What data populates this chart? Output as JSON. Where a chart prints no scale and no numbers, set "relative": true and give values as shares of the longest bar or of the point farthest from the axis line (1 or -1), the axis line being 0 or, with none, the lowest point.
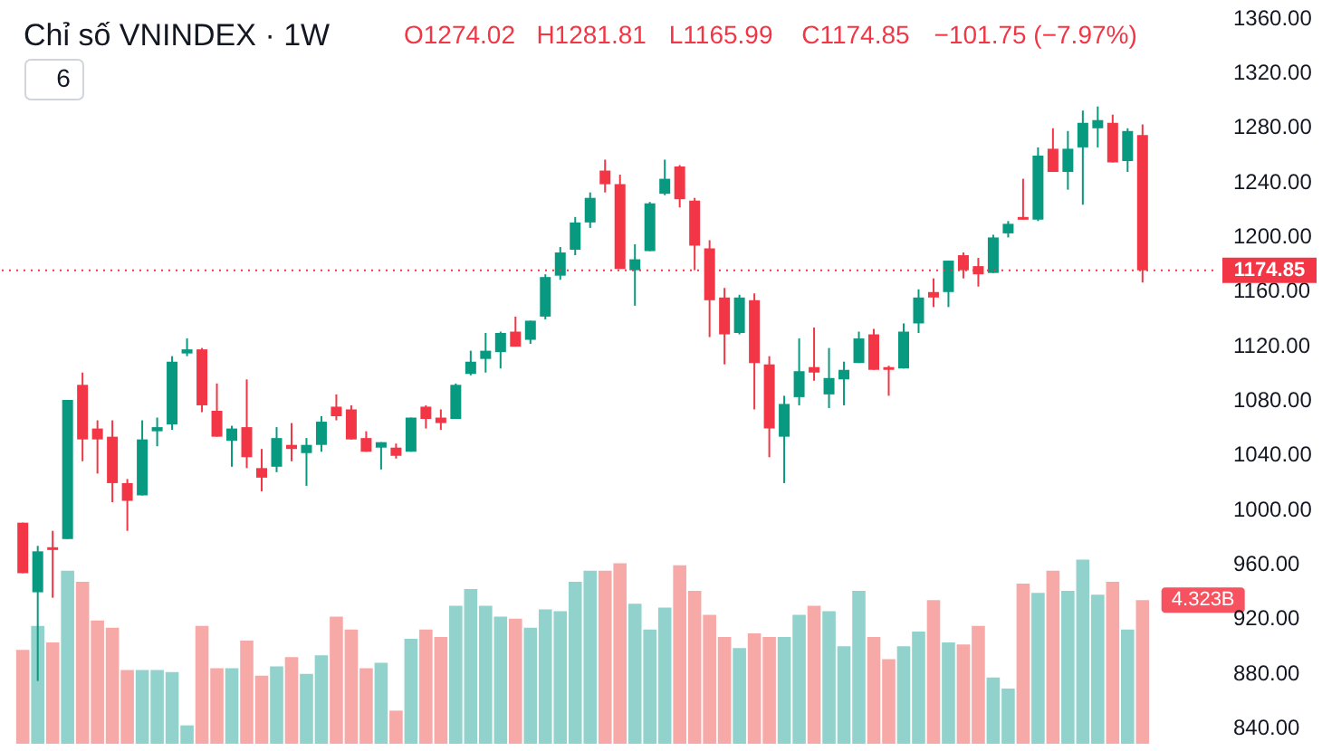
{
  "chart_data": [
    {
      "type": "candlestick",
      "title": "Chỉ số VNINDEX · 1W",
      "annotations": [
        "6",
        "O1274.02",
        "H1281.81",
        "L1165.99",
        "C1174.85",
        "−101.75 (−7.97%)"
      ],
      "categories": [
        null,
        null,
        null,
        null,
        null,
        null,
        null,
        null,
        null,
        null,
        null,
        null,
        null,
        null,
        null,
        null,
        null,
        null,
        null,
        null,
        null,
        null,
        null,
        null,
        null,
        null,
        null,
        null,
        null,
        null,
        null,
        null,
        null,
        null,
        null,
        null,
        null,
        null,
        null,
        null,
        null,
        null,
        null,
        null,
        null,
        null,
        null,
        null,
        null,
        null,
        null,
        null,
        null,
        null,
        null,
        null,
        null,
        null,
        null,
        null,
        null,
        null,
        null,
        null,
        null,
        null,
        null,
        null,
        null,
        null,
        null,
        null,
        null,
        null,
        null,
        null
      ],
      "ohlc": [
        [
          990,
          990,
          953,
          953
        ],
        [
          939,
          973,
          874,
          969
        ],
        [
          972,
          984,
          935,
          970
        ],
        [
          978,
          1080,
          978,
          1080
        ],
        [
          1091,
          1100,
          1035,
          1051
        ],
        [
          1059,
          1065,
          1026,
          1051
        ],
        [
          1053,
          1065,
          1005,
          1019
        ],
        [
          1019,
          1022,
          984,
          1006
        ],
        [
          1010,
          1065,
          1010,
          1051
        ],
        [
          1057,
          1067,
          1046,
          1060
        ],
        [
          1062,
          1112,
          1058,
          1108
        ],
        [
          1114,
          1125,
          1112,
          1117
        ],
        [
          1117,
          1118,
          1071,
          1076
        ],
        [
          1072,
          1092,
          1053,
          1053
        ],
        [
          1050,
          1061,
          1031,
          1059
        ],
        [
          1060,
          1095,
          1030,
          1038
        ],
        [
          1030,
          1044,
          1013,
          1023
        ],
        [
          1031,
          1060,
          1027,
          1052
        ],
        [
          1047,
          1063,
          1035,
          1044
        ],
        [
          1041,
          1052,
          1017,
          1047
        ],
        [
          1047,
          1068,
          1042,
          1064
        ],
        [
          1075,
          1084,
          1065,
          1068
        ],
        [
          1073,
          1076,
          1051,
          1051
        ],
        [
          1052,
          1057,
          1042,
          1042
        ],
        [
          1045,
          1049,
          1029,
          1049
        ],
        [
          1045,
          1048,
          1037,
          1039
        ],
        [
          1042,
          1067,
          1042,
          1067
        ],
        [
          1075,
          1076,
          1059,
          1066
        ],
        [
          1067,
          1073,
          1058,
          1063
        ],
        [
          1066,
          1092,
          1066,
          1091
        ],
        [
          1099,
          1116,
          1098,
          1108
        ],
        [
          1110,
          1129,
          1100,
          1116
        ],
        [
          1115,
          1130,
          1103,
          1129
        ],
        [
          1130,
          1141,
          1119,
          1119
        ],
        [
          1124,
          1138,
          1121,
          1138
        ],
        [
          1141,
          1172,
          1139,
          1170
        ],
        [
          1171,
          1192,
          1168,
          1188
        ],
        [
          1190,
          1214,
          1186,
          1210
        ],
        [
          1210,
          1232,
          1206,
          1228
        ],
        [
          1248,
          1256,
          1232,
          1238
        ],
        [
          1238,
          1245,
          1176,
          1176
        ],
        [
          1175,
          1194,
          1149,
          1183
        ],
        [
          1189,
          1225,
          1189,
          1224
        ],
        [
          1231,
          1256,
          1230,
          1242
        ],
        [
          1251,
          1252,
          1221,
          1227
        ],
        [
          1226,
          1228,
          1175,
          1193
        ],
        [
          1191,
          1197,
          1126,
          1153
        ],
        [
          1155,
          1162,
          1106,
          1128
        ],
        [
          1129,
          1157,
          1128,
          1155
        ],
        [
          1153,
          1158,
          1073,
          1107
        ],
        [
          1106,
          1112,
          1038,
          1059
        ],
        [
          1053,
          1083,
          1019,
          1077
        ],
        [
          1082,
          1125,
          1076,
          1101
        ],
        [
          1104,
          1133,
          1094,
          1100
        ],
        [
          1084,
          1118,
          1074,
          1096
        ],
        [
          1095,
          1108,
          1076,
          1102
        ],
        [
          1107,
          1130,
          1107,
          1125
        ],
        [
          1128,
          1132,
          1102,
          1102
        ],
        [
          1104,
          1105,
          1083,
          1102
        ],
        [
          1103,
          1136,
          1103,
          1130
        ],
        [
          1136,
          1161,
          1129,
          1155
        ],
        [
          1159,
          1169,
          1148,
          1155
        ],
        [
          1159,
          1182,
          1148,
          1182
        ],
        [
          1186,
          1188,
          1169,
          1175
        ],
        [
          1178,
          1184,
          1163,
          1172
        ],
        [
          1173,
          1201,
          1173,
          1199
        ],
        [
          1202,
          1211,
          1199,
          1209
        ],
        [
          1214,
          1242,
          1212,
          1212
        ],
        [
          1212,
          1265,
          1211,
          1259
        ],
        [
          1264,
          1279,
          1247,
          1247
        ],
        [
          1247,
          1277,
          1234,
          1264
        ],
        [
          1265,
          1292,
          1223,
          1283
        ],
        [
          1279,
          1295,
          1265,
          1285
        ],
        [
          1283,
          1289,
          1254,
          1254
        ],
        [
          1255,
          1279,
          1247,
          1277
        ],
        [
          1274.02,
          1281.81,
          1165.99,
          1174.85
        ]
      ],
      "colors": [
        "#f23645",
        "#089981",
        "#f23645",
        "#089981",
        "#f23645",
        "#f23645",
        "#f23645",
        "#f23645",
        "#089981",
        "#089981",
        "#089981",
        "#089981",
        "#f23645",
        "#f23645",
        "#089981",
        "#f23645",
        "#f23645",
        "#089981",
        "#f23645",
        "#089981",
        "#089981",
        "#f23645",
        "#f23645",
        "#f23645",
        "#089981",
        "#f23645",
        "#089981",
        "#f23645",
        "#f23645",
        "#089981",
        "#089981",
        "#089981",
        "#089981",
        "#f23645",
        "#089981",
        "#089981",
        "#089981",
        "#089981",
        "#089981",
        "#f23645",
        "#f23645",
        "#089981",
        "#089981",
        "#089981",
        "#f23645",
        "#f23645",
        "#f23645",
        "#f23645",
        "#089981",
        "#f23645",
        "#f23645",
        "#089981",
        "#089981",
        "#f23645",
        "#089981",
        "#089981",
        "#089981",
        "#f23645",
        "#f23645",
        "#089981",
        "#089981",
        "#f23645",
        "#089981",
        "#f23645",
        "#f23645",
        "#089981",
        "#089981",
        "#f23645",
        "#089981",
        "#f23645",
        "#089981",
        "#089981",
        "#089981",
        "#f23645",
        "#089981",
        "#f23645"
      ],
      "ylim": [
        828,
        1373
      ],
      "yticks": [
        {
          "value": 840,
          "label": "840.00"
        },
        {
          "value": 880,
          "label": "880.00"
        },
        {
          "value": 920,
          "label": "920.00"
        },
        {
          "value": 960,
          "label": "960.00"
        },
        {
          "value": 1000,
          "label": "1000.00"
        },
        {
          "value": 1040,
          "label": "1040.00"
        },
        {
          "value": 1080,
          "label": "1080.00"
        },
        {
          "value": 1120,
          "label": "1120.00"
        },
        {
          "value": 1160,
          "label": "1160.00"
        },
        {
          "value": 1200,
          "label": "1200.00"
        },
        {
          "value": 1240,
          "label": "1240.00"
        },
        {
          "value": 1280,
          "label": "1280.00"
        },
        {
          "value": 1320,
          "label": "1320.00"
        },
        {
          "value": 1360,
          "label": "1360.00"
        }
      ],
      "ref_lines": [
        {
          "axis": "y",
          "value": 1174.85,
          "label": "1174.85",
          "color": "#f23645",
          "line_style": "dotted"
        }
      ],
      "tick_labels": "y"
    },
    {
      "type": "bar",
      "relative": true,
      "annotations": [
        "4.323B"
      ],
      "categories": [
        null,
        null,
        null,
        null,
        null,
        null,
        null,
        null,
        null,
        null,
        null,
        null,
        null,
        null,
        null,
        null,
        null,
        null,
        null,
        null,
        null,
        null,
        null,
        null,
        null,
        null,
        null,
        null,
        null,
        null,
        null,
        null,
        null,
        null,
        null,
        null,
        null,
        null,
        null,
        null,
        null,
        null,
        null,
        null,
        null,
        null,
        null,
        null,
        null,
        null,
        null,
        null,
        null,
        null,
        null,
        null,
        null,
        null,
        null,
        null,
        null,
        null,
        null,
        null,
        null,
        null,
        null,
        null,
        null,
        null,
        null,
        null,
        null,
        null,
        null,
        null
      ],
      "values": [
        0.51,
        0.64,
        0.55,
        0.94,
        0.88,
        0.67,
        0.63,
        0.4,
        0.4,
        0.4,
        0.39,
        0.1,
        0.64,
        0.41,
        0.41,
        0.56,
        0.37,
        0.42,
        0.47,
        0.38,
        0.48,
        0.69,
        0.62,
        0.41,
        0.44,
        0.18,
        0.57,
        0.62,
        0.58,
        0.75,
        0.84,
        0.75,
        0.69,
        0.68,
        0.63,
        0.73,
        0.72,
        0.88,
        0.94,
        0.94,
        0.98,
        0.76,
        0.62,
        0.74,
        0.97,
        0.83,
        0.7,
        0.58,
        0.52,
        0.6,
        0.58,
        0.58,
        0.7,
        0.75,
        0.72,
        0.53,
        0.83,
        0.58,
        0.46,
        0.53,
        0.61,
        0.78,
        0.55,
        0.54,
        0.64,
        0.36,
        0.3,
        0.87,
        0.82,
        0.94,
        0.83,
        1,
        0.81,
        0.88,
        0.62,
        0.78
      ],
      "colors": [
        "#f7a9a7",
        "#92d2cc",
        "#f7a9a7",
        "#92d2cc",
        "#f7a9a7",
        "#f7a9a7",
        "#f7a9a7",
        "#f7a9a7",
        "#92d2cc",
        "#92d2cc",
        "#92d2cc",
        "#92d2cc",
        "#f7a9a7",
        "#f7a9a7",
        "#92d2cc",
        "#f7a9a7",
        "#f7a9a7",
        "#92d2cc",
        "#f7a9a7",
        "#92d2cc",
        "#92d2cc",
        "#f7a9a7",
        "#f7a9a7",
        "#f7a9a7",
        "#92d2cc",
        "#f7a9a7",
        "#92d2cc",
        "#f7a9a7",
        "#f7a9a7",
        "#92d2cc",
        "#92d2cc",
        "#92d2cc",
        "#92d2cc",
        "#f7a9a7",
        "#92d2cc",
        "#92d2cc",
        "#92d2cc",
        "#92d2cc",
        "#92d2cc",
        "#f7a9a7",
        "#f7a9a7",
        "#92d2cc",
        "#92d2cc",
        "#92d2cc",
        "#f7a9a7",
        "#f7a9a7",
        "#f7a9a7",
        "#f7a9a7",
        "#92d2cc",
        "#f7a9a7",
        "#f7a9a7",
        "#92d2cc",
        "#92d2cc",
        "#f7a9a7",
        "#92d2cc",
        "#92d2cc",
        "#92d2cc",
        "#f7a9a7",
        "#f7a9a7",
        "#92d2cc",
        "#92d2cc",
        "#f7a9a7",
        "#92d2cc",
        "#f7a9a7",
        "#f7a9a7",
        "#92d2cc",
        "#92d2cc",
        "#f7a9a7",
        "#92d2cc",
        "#f7a9a7",
        "#92d2cc",
        "#92d2cc",
        "#92d2cc",
        "#f7a9a7",
        "#92d2cc",
        "#f7a9a7"
      ]
    }
  ]
}
